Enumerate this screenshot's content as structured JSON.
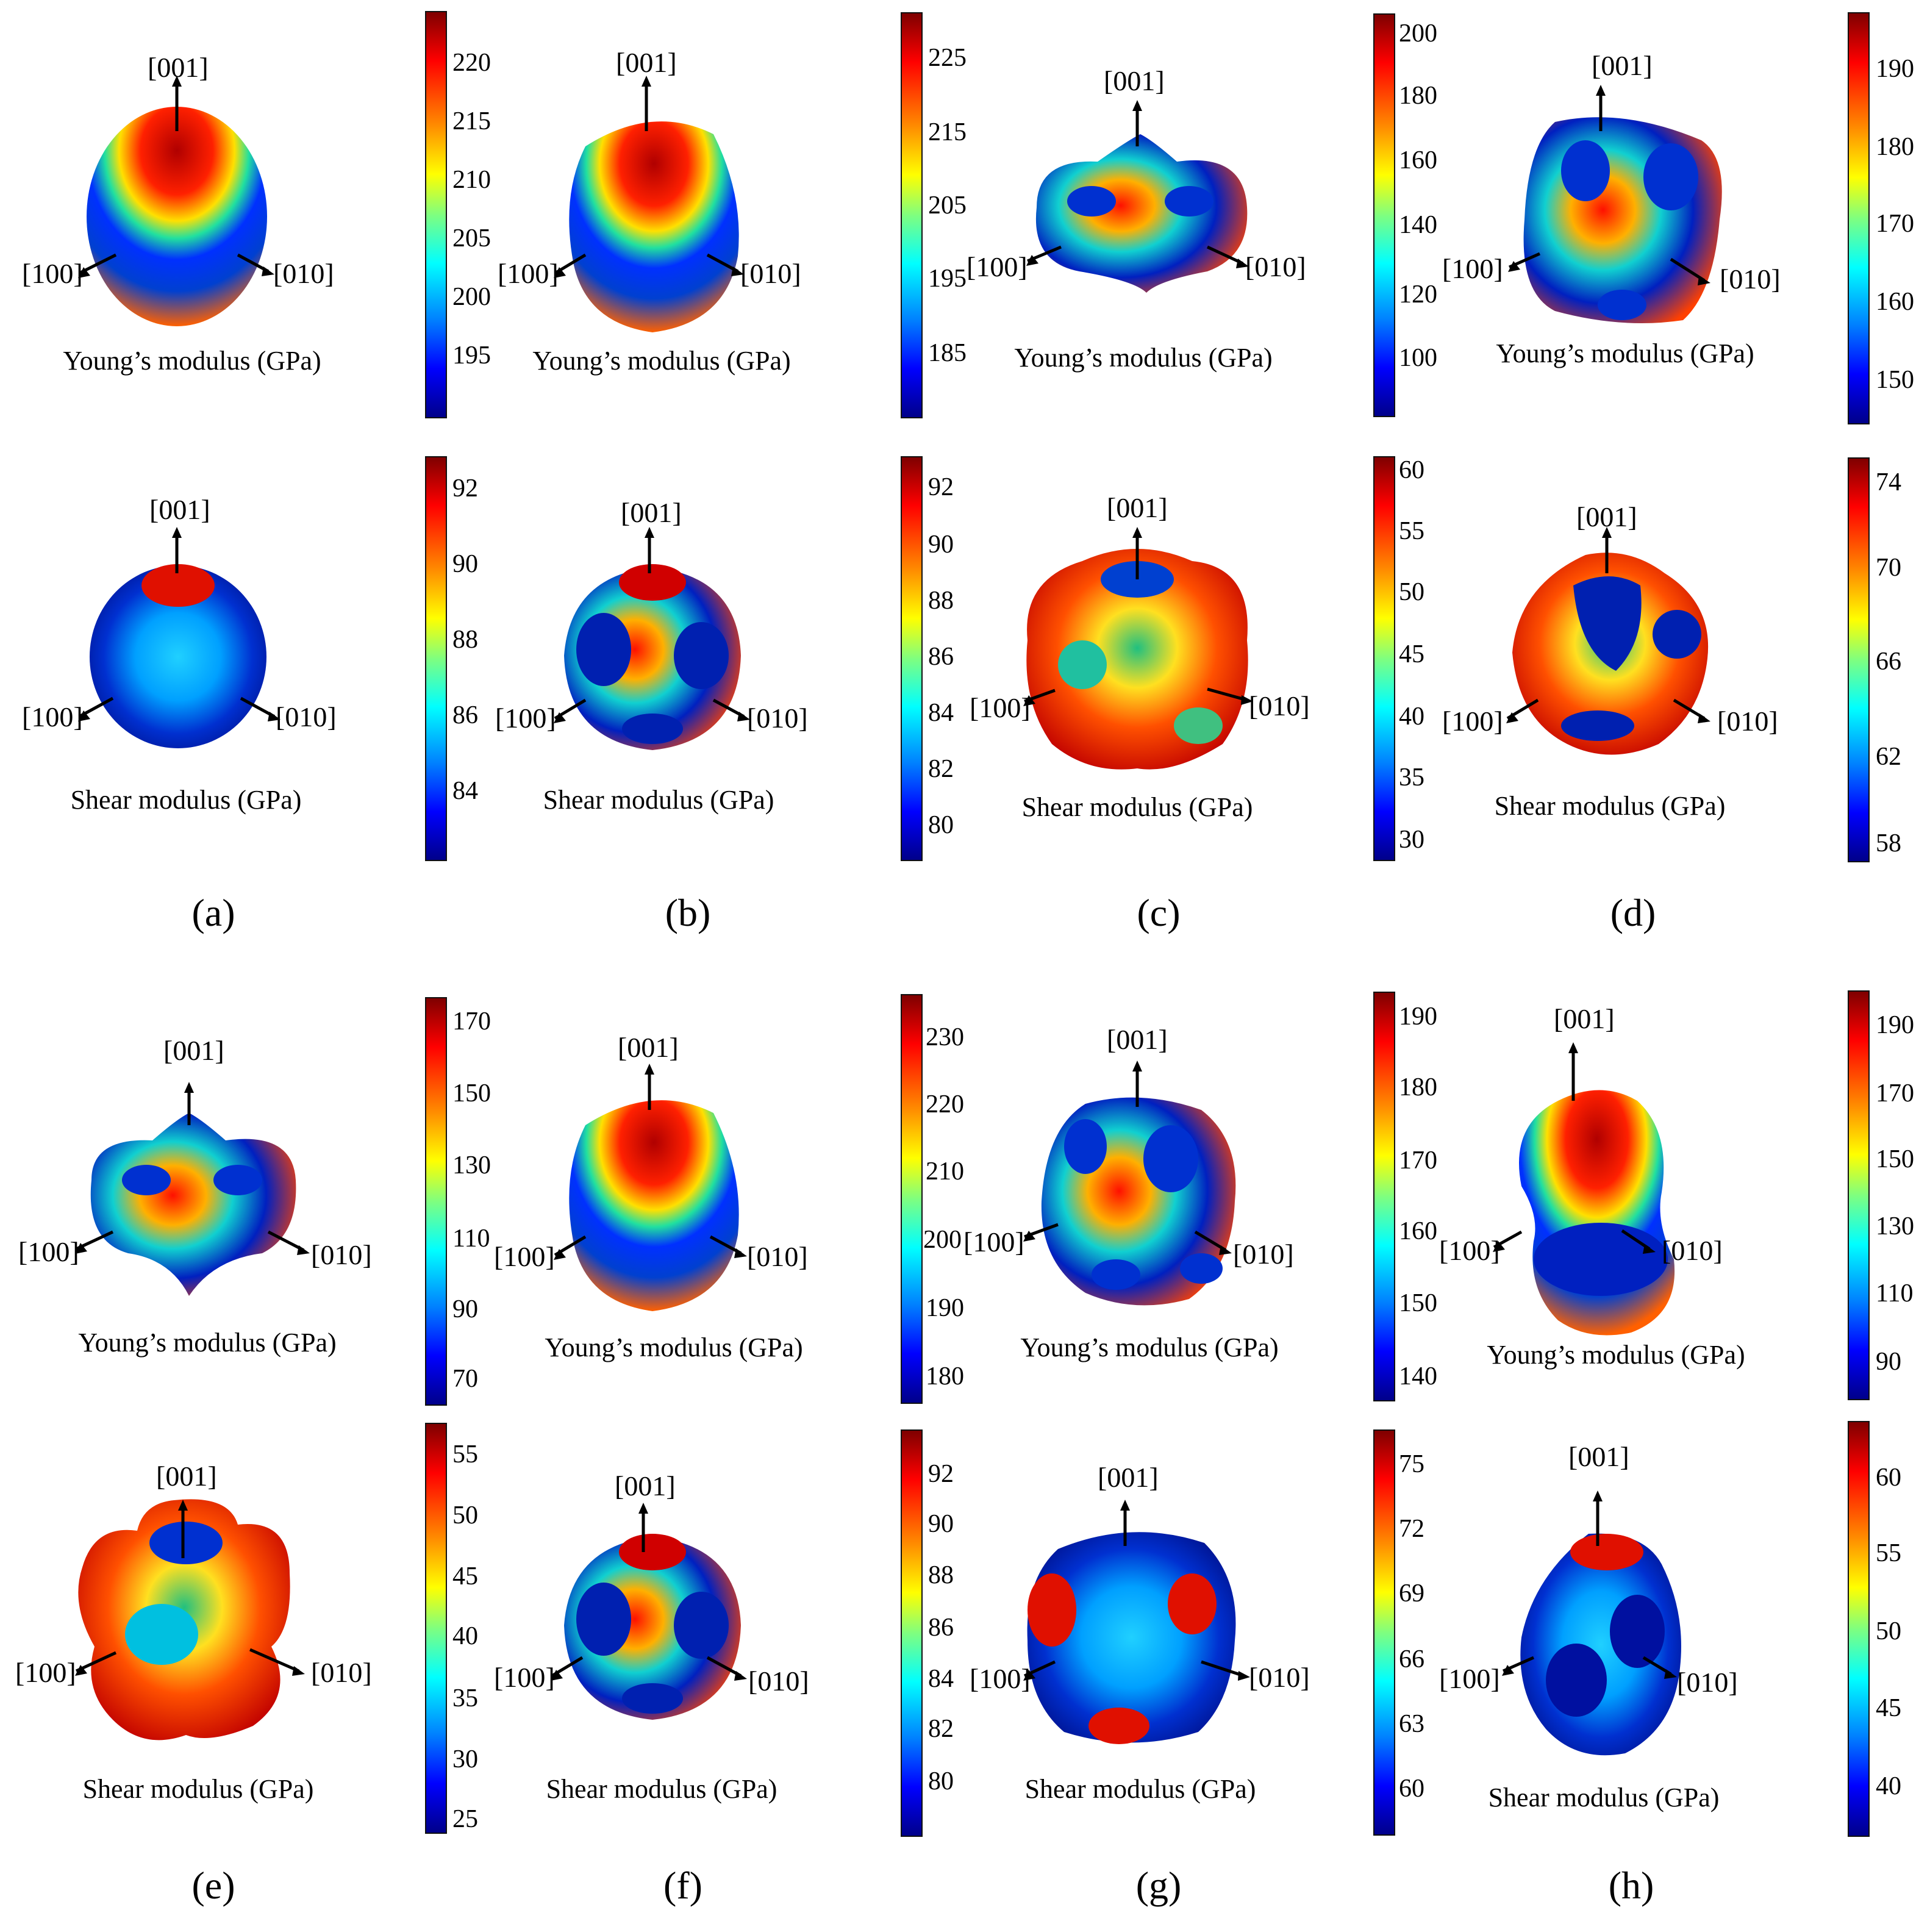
{
  "axes": {
    "top": "[001]",
    "left": "[100]",
    "right": "[010]"
  },
  "captions": {
    "young": "Young’s modulus (GPa)",
    "shear": "Shear modulus (GPa)"
  },
  "panel_labels": [
    "(a)",
    "(b)",
    "(c)",
    "(d)",
    "(e)",
    "(f)",
    "(g)",
    "(h)"
  ],
  "colorbars": {
    "a_young": [
      "220",
      "215",
      "210",
      "205",
      "200",
      "195"
    ],
    "ab_shear": [
      "92",
      "90",
      "88",
      "86",
      "84"
    ],
    "b_young": [
      "225",
      "215",
      "205",
      "195",
      "185"
    ],
    "bc_shear": [
      "92",
      "90",
      "88",
      "86",
      "84",
      "82",
      "80"
    ],
    "c_young": [
      "200",
      "180",
      "160",
      "140",
      "120",
      "100"
    ],
    "c_shear": [
      "60",
      "55",
      "50",
      "45",
      "40",
      "35",
      "30"
    ],
    "d_young": [
      "190",
      "180",
      "170",
      "160",
      "150"
    ],
    "d_shear": [
      "74",
      "70",
      "66",
      "62",
      "58"
    ],
    "e_young": [
      "170",
      "150",
      "130",
      "110",
      "90",
      "70"
    ],
    "e_shear": [
      "55",
      "50",
      "45",
      "40",
      "35",
      "30",
      "25"
    ],
    "f_young": [
      "230",
      "220",
      "210",
      "200",
      "190",
      "180"
    ],
    "f_shear": [
      "92",
      "90",
      "88",
      "86",
      "84",
      "82",
      "80"
    ],
    "g_young": [
      "190",
      "180",
      "170",
      "160",
      "150",
      "140"
    ],
    "g_shear": [
      "75",
      "72",
      "69",
      "66",
      "63",
      "60"
    ],
    "h_young": [
      "190",
      "170",
      "150",
      "130",
      "110",
      "90"
    ],
    "h_shear": [
      "60",
      "55",
      "50",
      "45",
      "40"
    ]
  },
  "colors": {
    "dark_red": "#7f0000",
    "red": "#ff0000",
    "yellow": "#ffff00",
    "cyan": "#00ffff",
    "blue": "#0000ff",
    "dark_blue": "#00008a"
  }
}
